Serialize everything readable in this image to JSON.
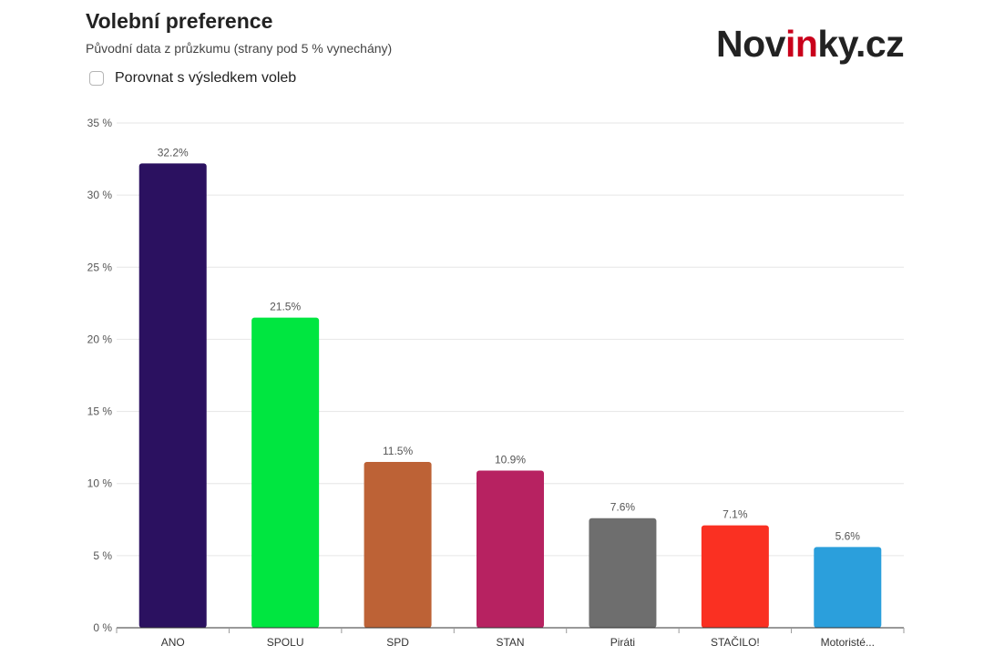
{
  "header": {
    "title": "Volební preference",
    "subtitle": "Původní data z průzkumu (strany pod 5 % vynechány)",
    "compare_label": "Porovnat s výsledkem voleb"
  },
  "logo": {
    "part1": "Nov",
    "part2": "in",
    "part3": "ky.cz"
  },
  "chart_data": {
    "type": "bar",
    "categories": [
      "ANO",
      "SPOLU",
      "SPD",
      "STAN",
      "Piráti",
      "STAČILO!",
      "Motoristé..."
    ],
    "values": [
      32.2,
      21.5,
      11.5,
      10.9,
      7.6,
      7.1,
      5.6
    ],
    "value_labels": [
      "32.2%",
      "21.5%",
      "11.5%",
      "10.9%",
      "7.6%",
      "7.1%",
      "5.6%"
    ],
    "colors": [
      "#2b1160",
      "#00e640",
      "#bd6236",
      "#b72261",
      "#6e6e6e",
      "#fa3022",
      "#2b9fdc"
    ],
    "yticks": [
      0,
      5,
      10,
      15,
      20,
      25,
      30,
      35
    ],
    "ytick_labels": [
      "0 %",
      "5 %",
      "10 %",
      "15 %",
      "20 %",
      "25 %",
      "30 %",
      "35 %"
    ],
    "ylim": [
      0,
      35
    ],
    "grid": true,
    "title": "",
    "xlabel": "",
    "ylabel": ""
  }
}
